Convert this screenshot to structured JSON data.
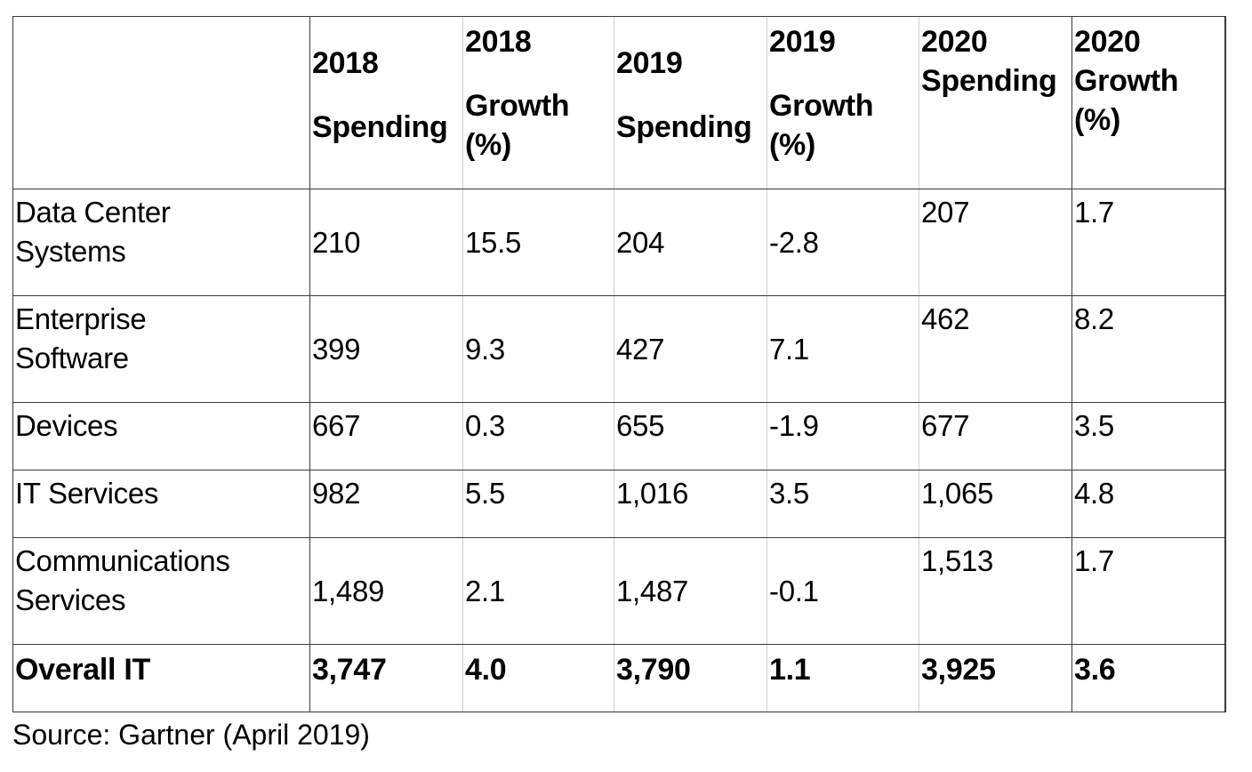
{
  "table": {
    "header": {
      "corner": "",
      "cols": [
        {
          "line1": "2018",
          "line2": "Spending",
          "line3": ""
        },
        {
          "line1": "2018",
          "line2": "Growth",
          "line3": "(%)"
        },
        {
          "line1": "2019",
          "line2": "Spending",
          "line3": ""
        },
        {
          "line1": "2019",
          "line2": "Growth",
          "line3": "(%)"
        },
        {
          "line1": "2020",
          "line2": "Spending",
          "line3": ""
        },
        {
          "line1": "2020",
          "line2": "Growth",
          "line3": "(%)"
        }
      ]
    },
    "rows": [
      {
        "label_line1": "Data Center",
        "label_line2": "Systems",
        "values": [
          "210",
          "15.5",
          "204",
          "-2.8",
          "207",
          "1.7"
        ]
      },
      {
        "label_line1": "Enterprise",
        "label_line2": "Software",
        "values": [
          "399",
          "9.3",
          "427",
          "7.1",
          "462",
          "8.2"
        ]
      },
      {
        "label_line1": "Devices",
        "label_line2": "",
        "values": [
          "667",
          "0.3",
          "655",
          "-1.9",
          "677",
          "3.5"
        ]
      },
      {
        "label_line1": "IT Services",
        "label_line2": "",
        "values": [
          "982",
          "5.5",
          "1,016",
          "3.5",
          "1,065",
          "4.8"
        ]
      },
      {
        "label_line1": "Communications",
        "label_line2": "Services",
        "values": [
          "1,489",
          "2.1",
          "1,487",
          "-0.1",
          "1,513",
          "1.7"
        ]
      }
    ],
    "total": {
      "label": "Overall IT",
      "values": [
        "3,747",
        "4.0",
        "3,790",
        "1.1",
        "3,925",
        "3.6"
      ]
    }
  },
  "source": "Source: Gartner (April 2019)",
  "colors": {
    "border_dark": "#3a3a3a",
    "border_light": "#cfcfcf",
    "text": "#000000",
    "background": "#ffffff"
  }
}
